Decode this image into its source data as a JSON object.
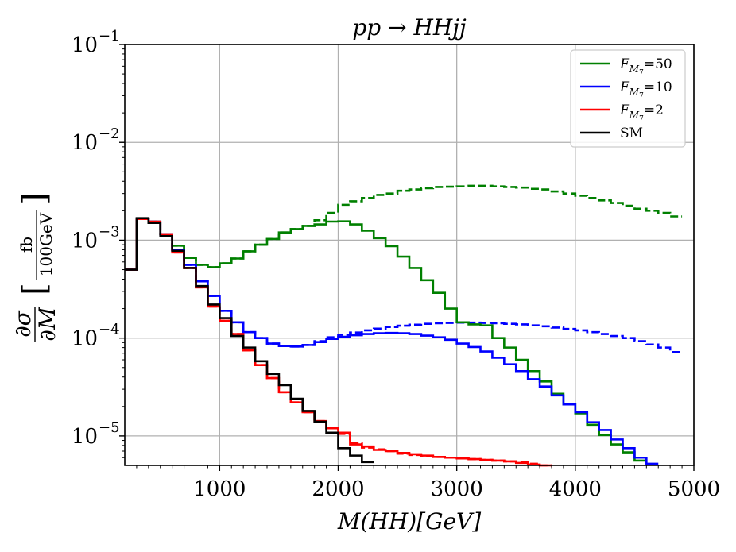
{
  "chart_data": {
    "type": "line",
    "title": "pp → HHjj",
    "xlabel": "M(HH)[GeV]",
    "ylabel": "∂σ/∂M [fb/100GeV]",
    "ylabel_parts": {
      "num": "∂σ",
      "den": "∂M",
      "unit_num": "fb",
      "unit_den": "100GeV"
    },
    "xlim": [
      200,
      5000
    ],
    "ylim": [
      5e-06,
      0.1
    ],
    "yscale": "log",
    "grid": true,
    "x_ticks": [
      1000,
      2000,
      3000,
      4000,
      5000
    ],
    "x_tick_labels": [
      "1000",
      "2000",
      "3000",
      "4000",
      "5000"
    ],
    "y_ticks": [
      1e-05,
      0.0001,
      0.001,
      0.01,
      0.1
    ],
    "y_tick_labels": [
      {
        "base": "10",
        "exp": "−5"
      },
      {
        "base": "10",
        "exp": "−4"
      },
      {
        "base": "10",
        "exp": "−3"
      },
      {
        "base": "10",
        "exp": "−2"
      },
      {
        "base": "10",
        "exp": "−1"
      }
    ],
    "legend_position": "top-right",
    "legend": [
      {
        "label": "F",
        "sub": "M",
        "subsub": "7",
        "value": "=50",
        "color": "#008000"
      },
      {
        "label": "F",
        "sub": "M",
        "subsub": "7",
        "value": "=10",
        "color": "#0000ff"
      },
      {
        "label": "F",
        "sub": "M",
        "subsub": "7",
        "value": "=2",
        "color": "#ff0000"
      },
      {
        "label": "SM",
        "sub": "",
        "subsub": "",
        "value": "",
        "color": "#000000"
      }
    ],
    "bin_edges": [
      200,
      300,
      400,
      500,
      600,
      700,
      800,
      900,
      1000,
      1100,
      1200,
      1300,
      1400,
      1500,
      1600,
      1700,
      1800,
      1900,
      2000,
      2100,
      2200,
      2300,
      2400,
      2500,
      2600,
      2700,
      2800,
      2900,
      3000,
      3100,
      3200,
      3300,
      3400,
      3500,
      3600,
      3700,
      3800,
      3900,
      4000,
      4100,
      4200,
      4300,
      4400,
      4500,
      4600,
      4700,
      4800,
      4900,
      5000
    ],
    "series": [
      {
        "name": "F_M7=50 solid",
        "color": "#008000",
        "dashed": false,
        "values": [
          0.0005,
          0.00165,
          0.00155,
          0.00115,
          0.00088,
          0.00066,
          0.00056,
          0.00053,
          0.00058,
          0.00065,
          0.00077,
          0.0009,
          0.00103,
          0.0012,
          0.0013,
          0.0014,
          0.00145,
          0.00155,
          0.00156,
          0.00145,
          0.00125,
          0.00105,
          0.00087,
          0.00068,
          0.00052,
          0.00039,
          0.00029,
          0.0002,
          0.000145,
          0.000138,
          0.000135,
          0.0001,
          8e-05,
          6e-05,
          4.6e-05,
          3.6e-05,
          2.7e-05,
          2.1e-05,
          1.7e-05,
          1.3e-05,
          1.02e-05,
          8.2e-06,
          6.8e-06,
          5.6e-06
        ]
      },
      {
        "name": "F_M7=50 dashed",
        "color": "#008000",
        "dashed": true,
        "values": [
          0.0005,
          0.00165,
          0.00155,
          0.00115,
          0.00088,
          0.00066,
          0.00056,
          0.00053,
          0.00058,
          0.00065,
          0.00077,
          0.0009,
          0.00103,
          0.0012,
          0.0013,
          0.0014,
          0.0016,
          0.0019,
          0.0023,
          0.0025,
          0.0027,
          0.0029,
          0.003,
          0.0032,
          0.0033,
          0.0034,
          0.0035,
          0.00352,
          0.00355,
          0.0036,
          0.0036,
          0.00355,
          0.0035,
          0.00345,
          0.00335,
          0.0033,
          0.00315,
          0.003,
          0.00285,
          0.0027,
          0.00255,
          0.0024,
          0.00225,
          0.0021,
          0.002,
          0.0019,
          0.00175
        ]
      },
      {
        "name": "F_M7=10 solid",
        "color": "#0000ff",
        "dashed": false,
        "values": [
          0.0005,
          0.00165,
          0.00155,
          0.00115,
          0.0008,
          0.00056,
          0.00038,
          0.00027,
          0.00019,
          0.000145,
          0.000115,
          0.0001,
          8.8e-05,
          8.3e-05,
          8.2e-05,
          8.5e-05,
          9.1e-05,
          9.8e-05,
          0.000103,
          0.000107,
          0.00011,
          0.000112,
          0.000113,
          0.000112,
          0.00011,
          0.000106,
          0.000102,
          9.6e-05,
          8.8e-05,
          8.1e-05,
          7.3e-05,
          6.3e-05,
          5.4e-05,
          4.6e-05,
          3.8e-05,
          3.2e-05,
          2.6e-05,
          2.1e-05,
          1.75e-05,
          1.38e-05,
          1.15e-05,
          9.2e-06,
          7.5e-06,
          6e-06,
          5.2e-06
        ]
      },
      {
        "name": "F_M7=10 dashed",
        "color": "#0000ff",
        "dashed": true,
        "values": [
          0.0005,
          0.00165,
          0.00155,
          0.00115,
          0.0008,
          0.00056,
          0.00038,
          0.00027,
          0.00019,
          0.000145,
          0.000115,
          0.0001,
          8.8e-05,
          8.3e-05,
          8.2e-05,
          8.5e-05,
          9.3e-05,
          0.000102,
          0.000108,
          0.000114,
          0.00012,
          0.000125,
          0.00013,
          0.000134,
          0.000137,
          0.00014,
          0.000142,
          0.000143,
          0.000144,
          0.000144,
          0.000143,
          0.000142,
          0.00014,
          0.000138,
          0.000135,
          0.000132,
          0.000128,
          0.000124,
          0.00012,
          0.000115,
          0.00011,
          0.000105,
          0.0001,
          9.3e-05,
          8.6e-05,
          8e-05,
          7.2e-05
        ]
      },
      {
        "name": "F_M7=2 solid",
        "color": "#ff0000",
        "dashed": false,
        "values": [
          0.0005,
          0.00165,
          0.00155,
          0.00115,
          0.00075,
          0.00052,
          0.00033,
          0.00021,
          0.00015,
          0.00011,
          7.5e-05,
          5.3e-05,
          3.9e-05,
          2.8e-05,
          2.2e-05,
          1.75e-05,
          1.42e-05,
          1.2e-05,
          1.08e-05,
          8.2e-06,
          7.8e-06,
          7.2e-06,
          7e-06,
          6.7e-06,
          6.5e-06,
          6.3e-06,
          6.1e-06,
          6e-06,
          5.9e-06,
          5.8e-06,
          5.7e-06,
          5.6e-06,
          5.5e-06,
          5.3e-06,
          5.1e-06,
          5e-06
        ]
      },
      {
        "name": "F_M7=2 dashed",
        "color": "#ff0000",
        "dashed": true,
        "values": [
          0.0005,
          0.00165,
          0.00155,
          0.00115,
          0.00075,
          0.00052,
          0.00033,
          0.00021,
          0.00015,
          0.00011,
          7.5e-05,
          5.3e-05,
          3.9e-05,
          2.8e-05,
          2.2e-05,
          1.75e-05,
          1.42e-05,
          1.2e-05,
          1.05e-05,
          8.5e-06,
          7.6e-06,
          7.3e-06,
          7e-06,
          6.6e-06,
          6.4e-06,
          6.2e-06,
          6.1e-06,
          6e-06,
          5.9e-06,
          5.8e-06,
          5.7e-06,
          5.6e-06,
          5.5e-06,
          5.4e-06,
          5.2e-06,
          5e-06
        ]
      },
      {
        "name": "SM",
        "color": "#000000",
        "dashed": false,
        "values": [
          0.0005,
          0.00168,
          0.0015,
          0.0011,
          0.00078,
          0.00052,
          0.00034,
          0.00022,
          0.00016,
          0.000105,
          8e-05,
          5.8e-05,
          4.3e-05,
          3.3e-05,
          2.4e-05,
          1.8e-05,
          1.4e-05,
          1.08e-05,
          7.5e-06,
          6.3e-06,
          5.4e-06
        ]
      }
    ]
  }
}
